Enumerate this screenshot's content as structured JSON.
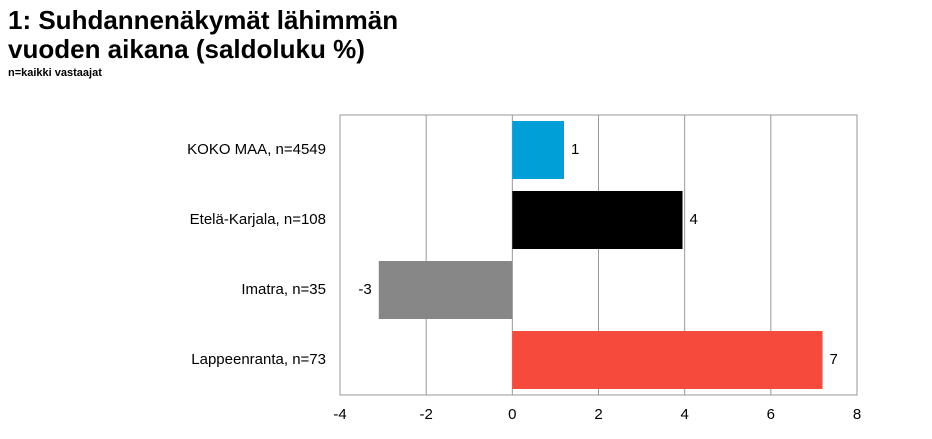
{
  "chart_data": {
    "type": "barh",
    "title": "1: Suhdannenäkymät lähimmän vuoden aikana (saldoluku %)",
    "subtitle": "n=kaikki vastaajat",
    "categories": [
      "KOKO MAA, n=4549",
      "Etelä-Karjala, n=108",
      "Imatra, n=35",
      "Lappeenranta, n=73"
    ],
    "values": [
      1.2,
      3.95,
      -3.1,
      7.2
    ],
    "value_labels": [
      "1",
      "4",
      "-3",
      "7"
    ],
    "colors": [
      "#009fd8",
      "#000000",
      "#878787",
      "#f64a3d"
    ],
    "xlim": [
      -4,
      8
    ],
    "xticks": [
      -4,
      -2,
      0,
      2,
      4,
      6,
      8
    ],
    "grid": true
  }
}
